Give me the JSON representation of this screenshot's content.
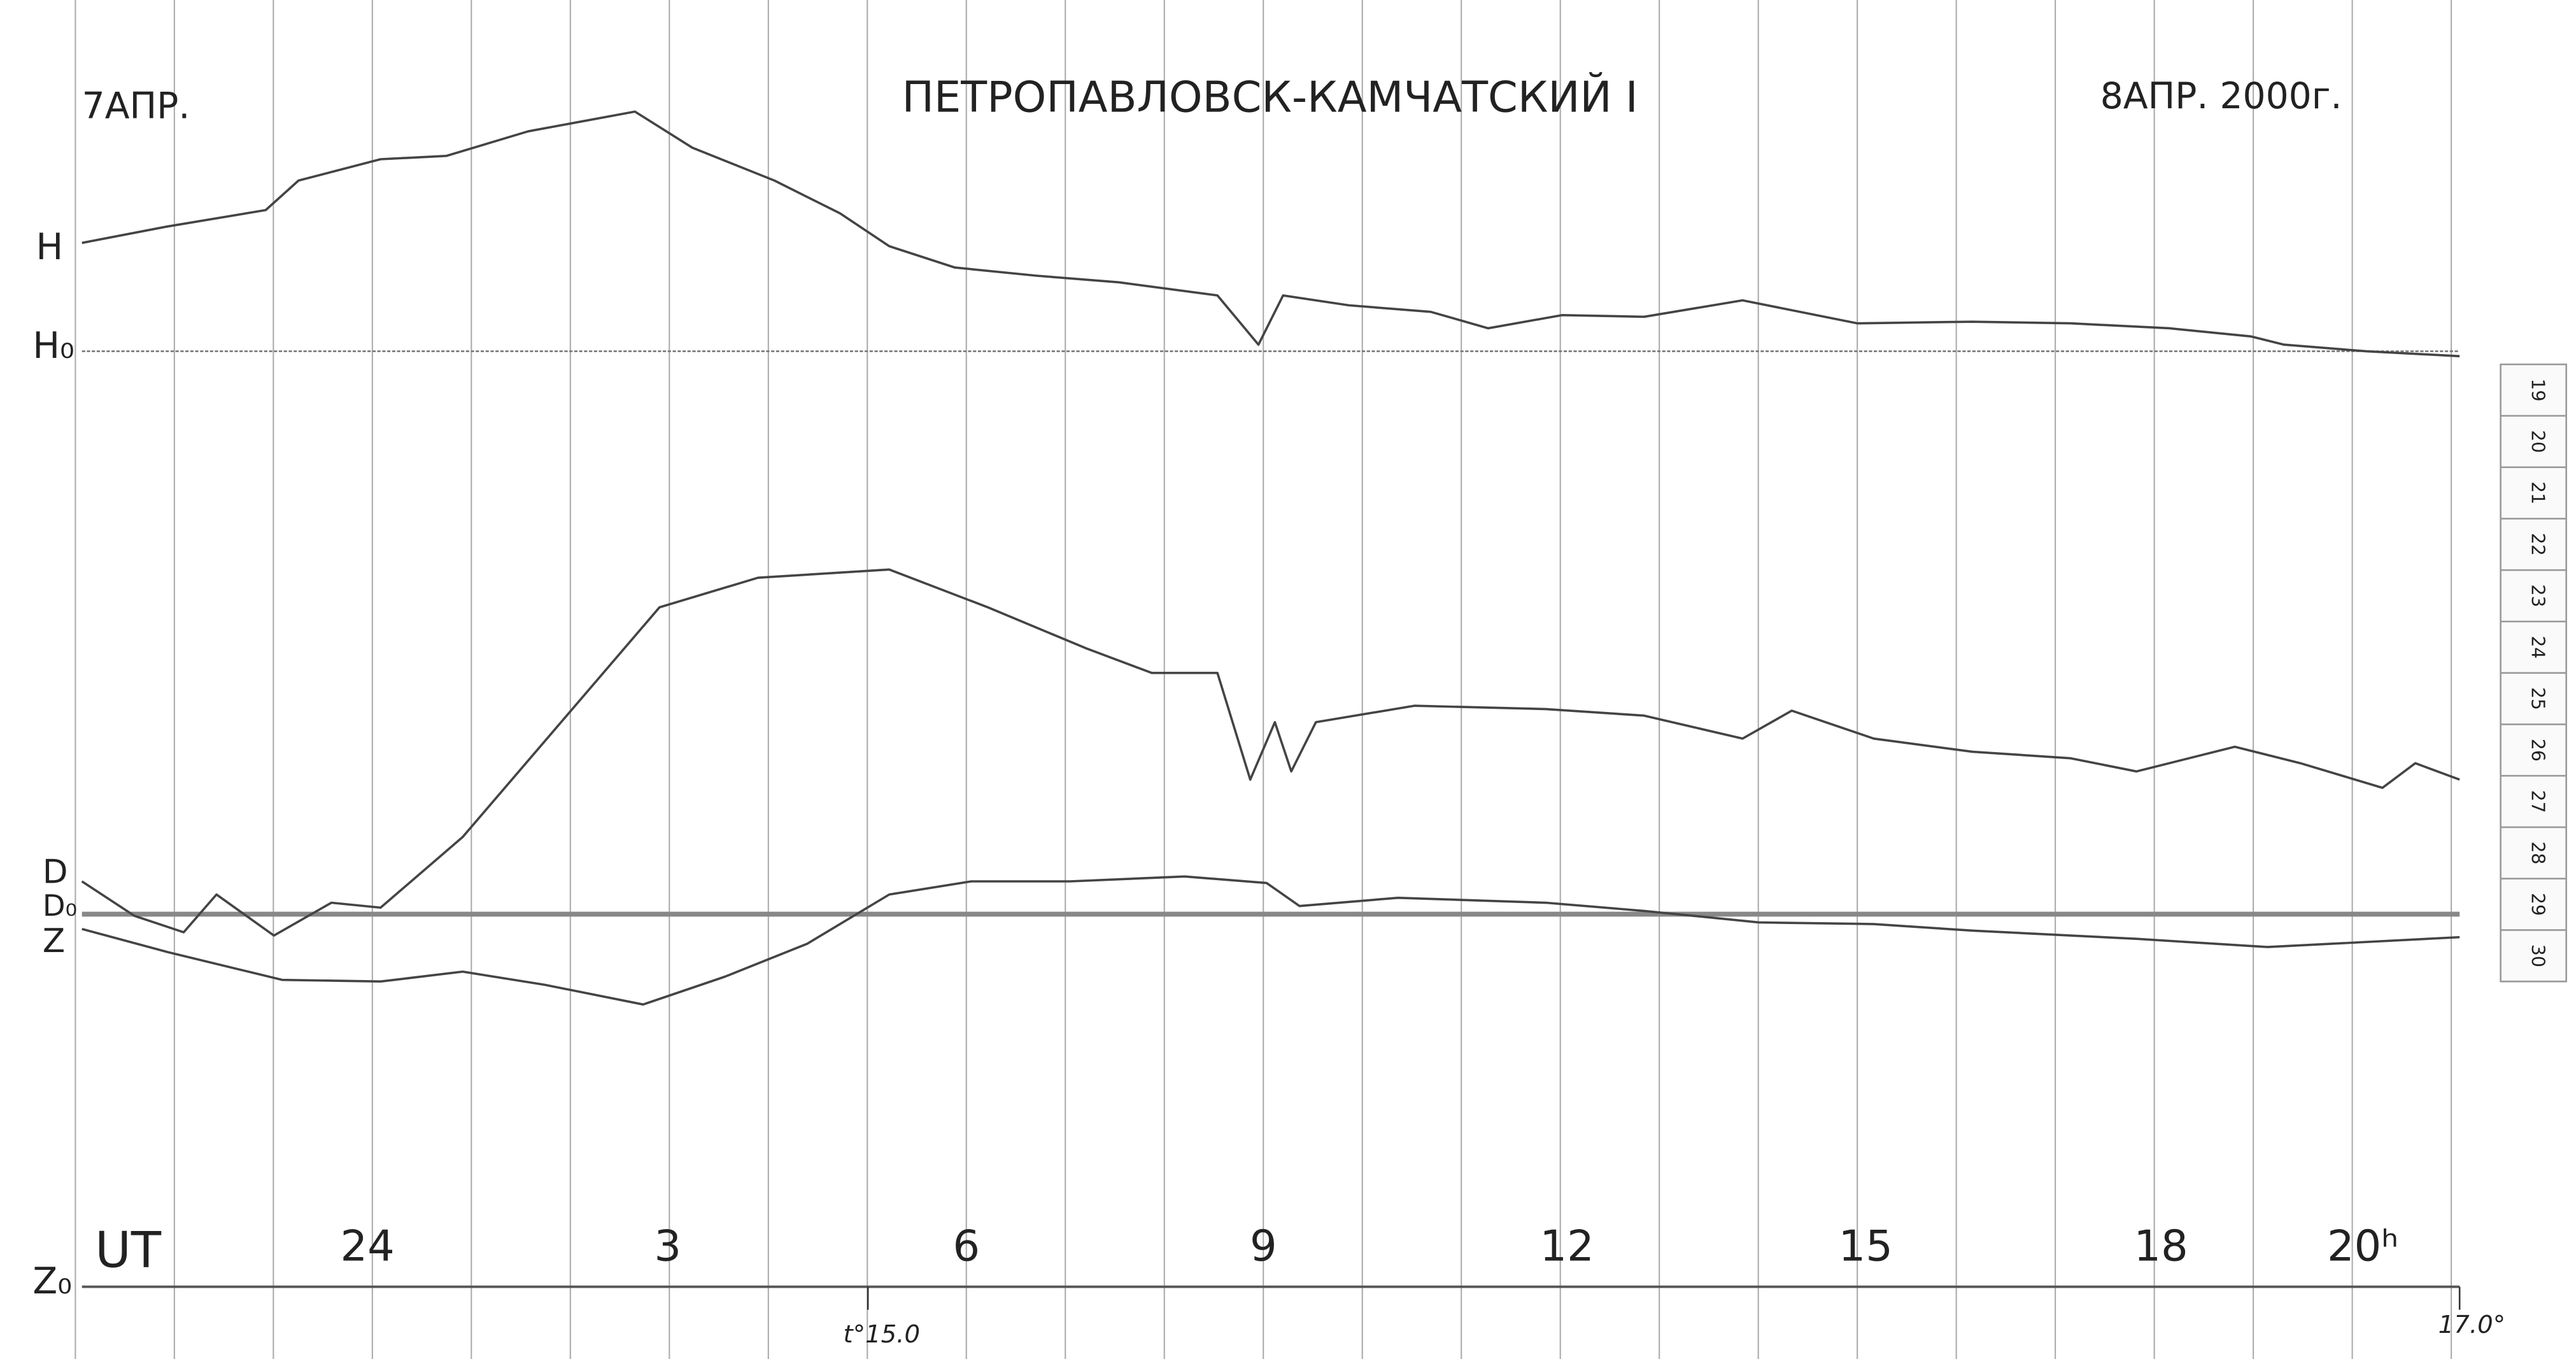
{
  "header": {
    "date_left": "7АПР.",
    "title": "ПЕТРОПАВЛОВСК-КАМЧАТСКИЙ I",
    "date_right": "8АПР. 2000г."
  },
  "components": {
    "h": "H",
    "h0": "H₀",
    "d": "D",
    "d0": "D₀",
    "z": "Z",
    "z0": "Z₀"
  },
  "time_axis": {
    "unit": "UT",
    "labels": [
      "24",
      "3",
      "6",
      "9",
      "12",
      "15",
      "18",
      "20ʰ"
    ]
  },
  "temperature": {
    "start": "t°15.0",
    "end": "17.0°"
  },
  "scale": [
    "19",
    "20",
    "21",
    "22",
    "23",
    "24",
    "25",
    "26",
    "27",
    "28",
    "29",
    "30"
  ]
}
